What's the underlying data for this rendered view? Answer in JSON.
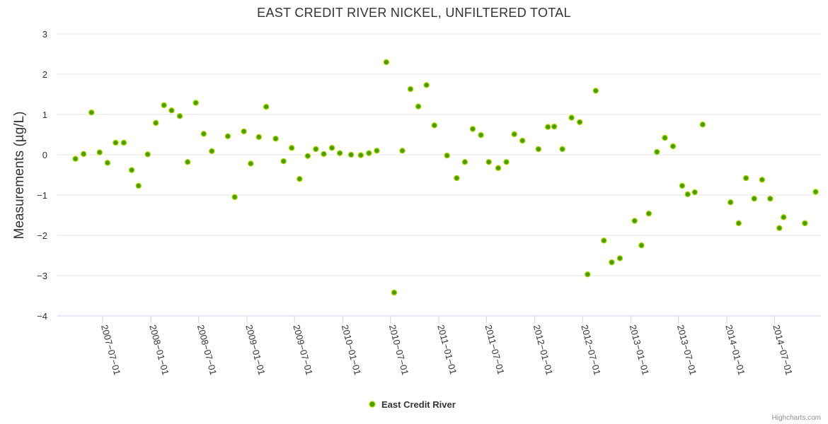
{
  "chart_data": {
    "type": "scatter",
    "title": "EAST CREDIT RIVER NICKEL, UNFILTERED TOTAL",
    "xlabel": "",
    "ylabel": "Measurements (µg/L)",
    "ylim": [
      -4,
      3
    ],
    "yticks": [
      "3",
      "2",
      "1",
      "0",
      "−1",
      "−2",
      "−3",
      "−4"
    ],
    "ytick_values": [
      3,
      2,
      1,
      0,
      -1,
      -2,
      -3,
      -4
    ],
    "xticks": [
      "2007-07-01",
      "2008-01-01",
      "2008-07-01",
      "2009-01-01",
      "2009-07-01",
      "2010-01-01",
      "2010-07-01",
      "2011-01-01",
      "2011-07-01",
      "2012-01-01",
      "2012-07-01",
      "2013-01-01",
      "2013-07-01",
      "2014-01-01",
      "2014-07-01"
    ],
    "xtick_labels": [
      "2007−07−01",
      "2008−01−01",
      "2008−07−01",
      "2009−01−01",
      "2009−07−01",
      "2010−01−01",
      "2010−07−01",
      "2011−01−01",
      "2011−07−01",
      "2012−01−01",
      "2012−07−01",
      "2013−01−01",
      "2013−07−01",
      "2014−01−01",
      "2014−07−01"
    ],
    "xlim": [
      "2007-01-10",
      "2014-12-25"
    ],
    "legend": "bottom-center",
    "grid": true,
    "series": [
      {
        "name": "East Credit River",
        "color": "#4a9a00",
        "points": [
          {
            "x": "2007-03-20",
            "y": -0.1
          },
          {
            "x": "2007-04-20",
            "y": 0.02
          },
          {
            "x": "2007-05-20",
            "y": 1.05
          },
          {
            "x": "2007-06-20",
            "y": 0.06
          },
          {
            "x": "2007-07-20",
            "y": -0.2
          },
          {
            "x": "2007-08-20",
            "y": 0.3
          },
          {
            "x": "2007-09-20",
            "y": 0.3
          },
          {
            "x": "2007-10-20",
            "y": -0.38
          },
          {
            "x": "2007-11-15",
            "y": -0.77
          },
          {
            "x": "2007-12-20",
            "y": 0.01
          },
          {
            "x": "2008-01-20",
            "y": 0.79
          },
          {
            "x": "2008-02-20",
            "y": 1.23
          },
          {
            "x": "2008-03-20",
            "y": 1.1
          },
          {
            "x": "2008-04-20",
            "y": 0.96
          },
          {
            "x": "2008-05-20",
            "y": -0.18
          },
          {
            "x": "2008-06-20",
            "y": 1.29
          },
          {
            "x": "2008-07-20",
            "y": 0.52
          },
          {
            "x": "2008-08-20",
            "y": 0.09
          },
          {
            "x": "2008-10-20",
            "y": 0.46
          },
          {
            "x": "2008-11-15",
            "y": -1.05
          },
          {
            "x": "2008-12-20",
            "y": 0.58
          },
          {
            "x": "2009-01-15",
            "y": -0.22
          },
          {
            "x": "2009-02-15",
            "y": 0.44
          },
          {
            "x": "2009-03-15",
            "y": 1.19
          },
          {
            "x": "2009-04-20",
            "y": 0.4
          },
          {
            "x": "2009-05-20",
            "y": -0.16
          },
          {
            "x": "2009-06-20",
            "y": 0.17
          },
          {
            "x": "2009-07-20",
            "y": -0.6
          },
          {
            "x": "2009-08-20",
            "y": -0.03
          },
          {
            "x": "2009-09-20",
            "y": 0.14
          },
          {
            "x": "2009-10-20",
            "y": 0.02
          },
          {
            "x": "2009-11-20",
            "y": 0.17
          },
          {
            "x": "2009-12-20",
            "y": 0.04
          },
          {
            "x": "2010-02-01",
            "y": 0.0
          },
          {
            "x": "2010-03-10",
            "y": -0.01
          },
          {
            "x": "2010-04-10",
            "y": 0.04
          },
          {
            "x": "2010-05-10",
            "y": 0.1
          },
          {
            "x": "2010-06-15",
            "y": 2.3
          },
          {
            "x": "2010-07-15",
            "y": -3.42
          },
          {
            "x": "2010-08-15",
            "y": 0.1
          },
          {
            "x": "2010-09-15",
            "y": 1.63
          },
          {
            "x": "2010-10-15",
            "y": 1.2
          },
          {
            "x": "2010-11-15",
            "y": 1.73
          },
          {
            "x": "2010-12-15",
            "y": 0.73
          },
          {
            "x": "2011-02-01",
            "y": -0.02
          },
          {
            "x": "2011-03-10",
            "y": -0.58
          },
          {
            "x": "2011-04-10",
            "y": -0.18
          },
          {
            "x": "2011-05-10",
            "y": 0.64
          },
          {
            "x": "2011-06-10",
            "y": 0.49
          },
          {
            "x": "2011-07-10",
            "y": -0.18
          },
          {
            "x": "2011-08-15",
            "y": -0.33
          },
          {
            "x": "2011-09-15",
            "y": -0.18
          },
          {
            "x": "2011-10-15",
            "y": 0.51
          },
          {
            "x": "2011-11-15",
            "y": 0.35
          },
          {
            "x": "2012-01-15",
            "y": 0.14
          },
          {
            "x": "2012-02-20",
            "y": 0.69
          },
          {
            "x": "2012-03-15",
            "y": 0.7
          },
          {
            "x": "2012-04-15",
            "y": 0.14
          },
          {
            "x": "2012-05-20",
            "y": 0.92
          },
          {
            "x": "2012-06-20",
            "y": 0.81
          },
          {
            "x": "2012-07-20",
            "y": -2.97
          },
          {
            "x": "2012-08-20",
            "y": 1.59
          },
          {
            "x": "2012-09-20",
            "y": -2.13
          },
          {
            "x": "2012-10-20",
            "y": -2.67
          },
          {
            "x": "2012-11-20",
            "y": -2.57
          },
          {
            "x": "2013-01-15",
            "y": -1.64
          },
          {
            "x": "2013-02-10",
            "y": -2.25
          },
          {
            "x": "2013-03-10",
            "y": -1.46
          },
          {
            "x": "2013-04-10",
            "y": 0.07
          },
          {
            "x": "2013-05-10",
            "y": 0.42
          },
          {
            "x": "2013-06-10",
            "y": 0.21
          },
          {
            "x": "2013-07-15",
            "y": -0.77
          },
          {
            "x": "2013-08-05",
            "y": -0.98
          },
          {
            "x": "2013-09-01",
            "y": -0.93
          },
          {
            "x": "2013-10-01",
            "y": 0.75
          },
          {
            "x": "2014-01-15",
            "y": -1.18
          },
          {
            "x": "2014-02-15",
            "y": -1.7
          },
          {
            "x": "2014-03-15",
            "y": -0.58
          },
          {
            "x": "2014-04-15",
            "y": -1.09
          },
          {
            "x": "2014-05-15",
            "y": -0.62
          },
          {
            "x": "2014-06-15",
            "y": -1.09
          },
          {
            "x": "2014-07-20",
            "y": -1.82
          },
          {
            "x": "2014-08-05",
            "y": -1.55
          },
          {
            "x": "2014-10-25",
            "y": -1.7
          },
          {
            "x": "2014-12-05",
            "y": -0.92
          }
        ]
      }
    ]
  },
  "credits": "Highcharts.com"
}
